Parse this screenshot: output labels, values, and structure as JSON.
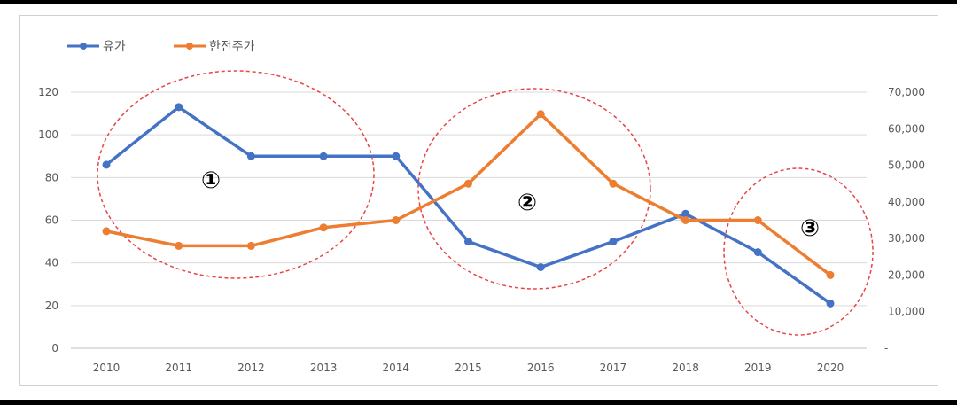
{
  "chart_data": {
    "type": "line",
    "categories": [
      "2010",
      "2011",
      "2012",
      "2013",
      "2014",
      "2015",
      "2016",
      "2017",
      "2018",
      "2019",
      "2020"
    ],
    "series": [
      {
        "name": "유가",
        "axis": "left",
        "color": "#4472c4",
        "values": [
          86,
          113,
          90,
          90,
          90,
          50,
          38,
          50,
          63,
          45,
          21
        ]
      },
      {
        "name": "한전주가",
        "axis": "right",
        "color": "#ed7d31",
        "values": [
          32000,
          28000,
          28000,
          33000,
          35000,
          45000,
          64000,
          45000,
          35000,
          35000,
          20000
        ]
      }
    ],
    "y_left": {
      "min": 0,
      "max": 120,
      "ticks": [
        "0",
        "20",
        "40",
        "60",
        "80",
        "100",
        "120"
      ]
    },
    "y_right": {
      "min": 0,
      "max": 70000,
      "ticks": [
        "-",
        "10,000",
        "20,000",
        "30,000",
        "40,000",
        "50,000",
        "60,000",
        "70,000"
      ]
    },
    "grid": true,
    "legend_position": "top-left",
    "annotations": [
      {
        "label": "①",
        "around": [
          "2010",
          "2013"
        ]
      },
      {
        "label": "②",
        "around": [
          "2015",
          "2017"
        ]
      },
      {
        "label": "③",
        "around": [
          "2019",
          "2020"
        ]
      }
    ]
  }
}
